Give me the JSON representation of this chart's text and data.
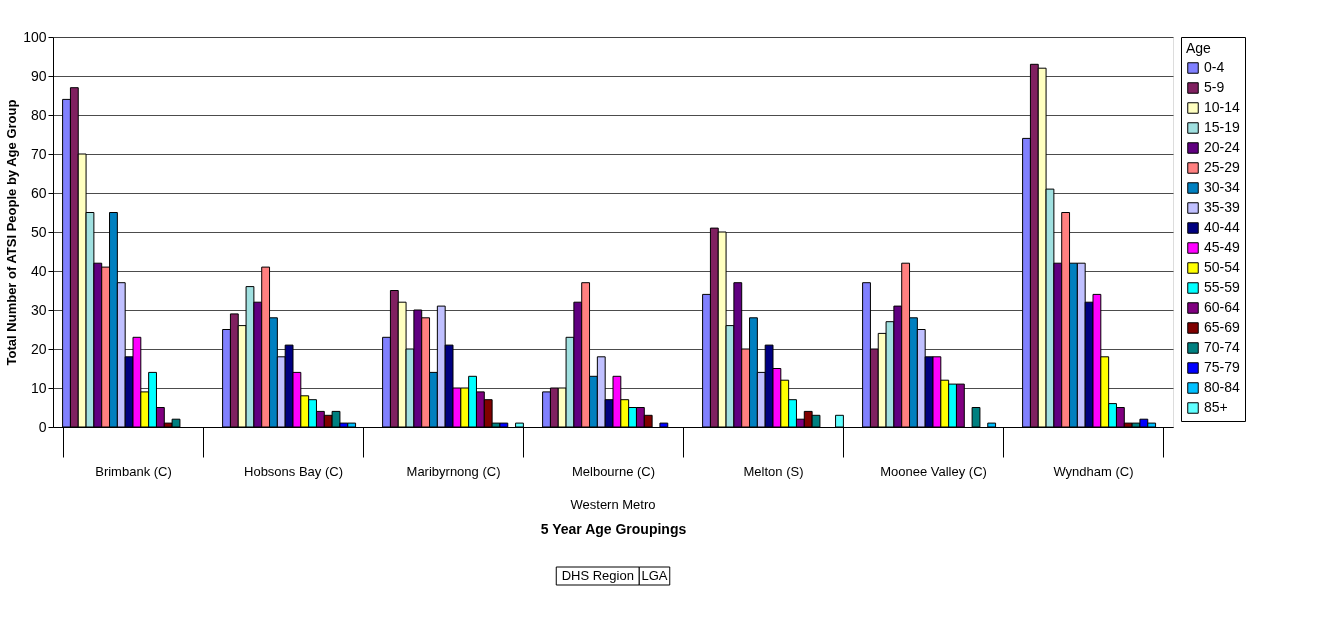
{
  "chart_data": {
    "type": "bar",
    "xlabel": "5 Year Age Groupings",
    "ylabel": "Total Number of ATSI People by Age Group",
    "legend_title": "Age",
    "categories": [
      "Brimbank (C)",
      "Hobsons Bay (C)",
      "Maribyrnong (C)",
      "Melbourne (C)",
      "Melton (S)",
      "Moonee Valley (C)",
      "Wyndham (C)"
    ],
    "series": [
      {
        "name": "0-4",
        "color": "#8080ff",
        "values": [
          84,
          25,
          23,
          9,
          34,
          37,
          74
        ]
      },
      {
        "name": "5-9",
        "color": "#802060",
        "values": [
          87,
          29,
          35,
          10,
          51,
          20,
          93
        ]
      },
      {
        "name": "10-14",
        "color": "#ffffc0",
        "values": [
          70,
          26,
          32,
          10,
          50,
          24,
          92
        ]
      },
      {
        "name": "15-19",
        "color": "#a0e0e0",
        "values": [
          55,
          36,
          20,
          23,
          26,
          27,
          61
        ]
      },
      {
        "name": "20-24",
        "color": "#600080",
        "values": [
          42,
          32,
          30,
          32,
          37,
          31,
          42
        ]
      },
      {
        "name": "25-29",
        "color": "#ff8080",
        "values": [
          41,
          41,
          28,
          37,
          20,
          42,
          55
        ]
      },
      {
        "name": "30-34",
        "color": "#0080c0",
        "values": [
          55,
          28,
          14,
          13,
          28,
          28,
          42
        ]
      },
      {
        "name": "35-39",
        "color": "#c0c0ff",
        "values": [
          37,
          18,
          31,
          18,
          14,
          25,
          42
        ]
      },
      {
        "name": "40-44",
        "color": "#000080",
        "values": [
          18,
          21,
          21,
          7,
          21,
          18,
          32
        ]
      },
      {
        "name": "45-49",
        "color": "#ff00ff",
        "values": [
          23,
          14,
          10,
          13,
          15,
          18,
          34
        ]
      },
      {
        "name": "50-54",
        "color": "#ffff00",
        "values": [
          9,
          8,
          10,
          7,
          12,
          12,
          18
        ]
      },
      {
        "name": "55-59",
        "color": "#00ffff",
        "values": [
          14,
          7,
          13,
          5,
          7,
          11,
          6
        ]
      },
      {
        "name": "60-64",
        "color": "#800080",
        "values": [
          5,
          4,
          9,
          5,
          2,
          11,
          5
        ]
      },
      {
        "name": "65-69",
        "color": "#800000",
        "values": [
          1,
          3,
          7,
          3,
          4,
          null,
          1
        ]
      },
      {
        "name": "70-74",
        "color": "#008080",
        "values": [
          2,
          4,
          1,
          null,
          3,
          5,
          1
        ]
      },
      {
        "name": "75-79",
        "color": "#0000ff",
        "values": [
          null,
          1,
          1,
          1,
          null,
          null,
          2
        ]
      },
      {
        "name": "80-84",
        "color": "#00c0ff",
        "values": [
          null,
          1,
          null,
          null,
          null,
          1,
          1
        ]
      },
      {
        "name": "85+",
        "color": "#60ffff",
        "values": [
          null,
          null,
          1,
          null,
          3,
          null,
          null
        ]
      }
    ],
    "ylim": [
      0,
      100
    ],
    "yticks": [
      0,
      10,
      20,
      30,
      40,
      50,
      60,
      70,
      80,
      90,
      100
    ],
    "grid": "y",
    "legend": "right",
    "annotations": [
      "Western Metro",
      "DHS Region",
      "LGA"
    ]
  }
}
